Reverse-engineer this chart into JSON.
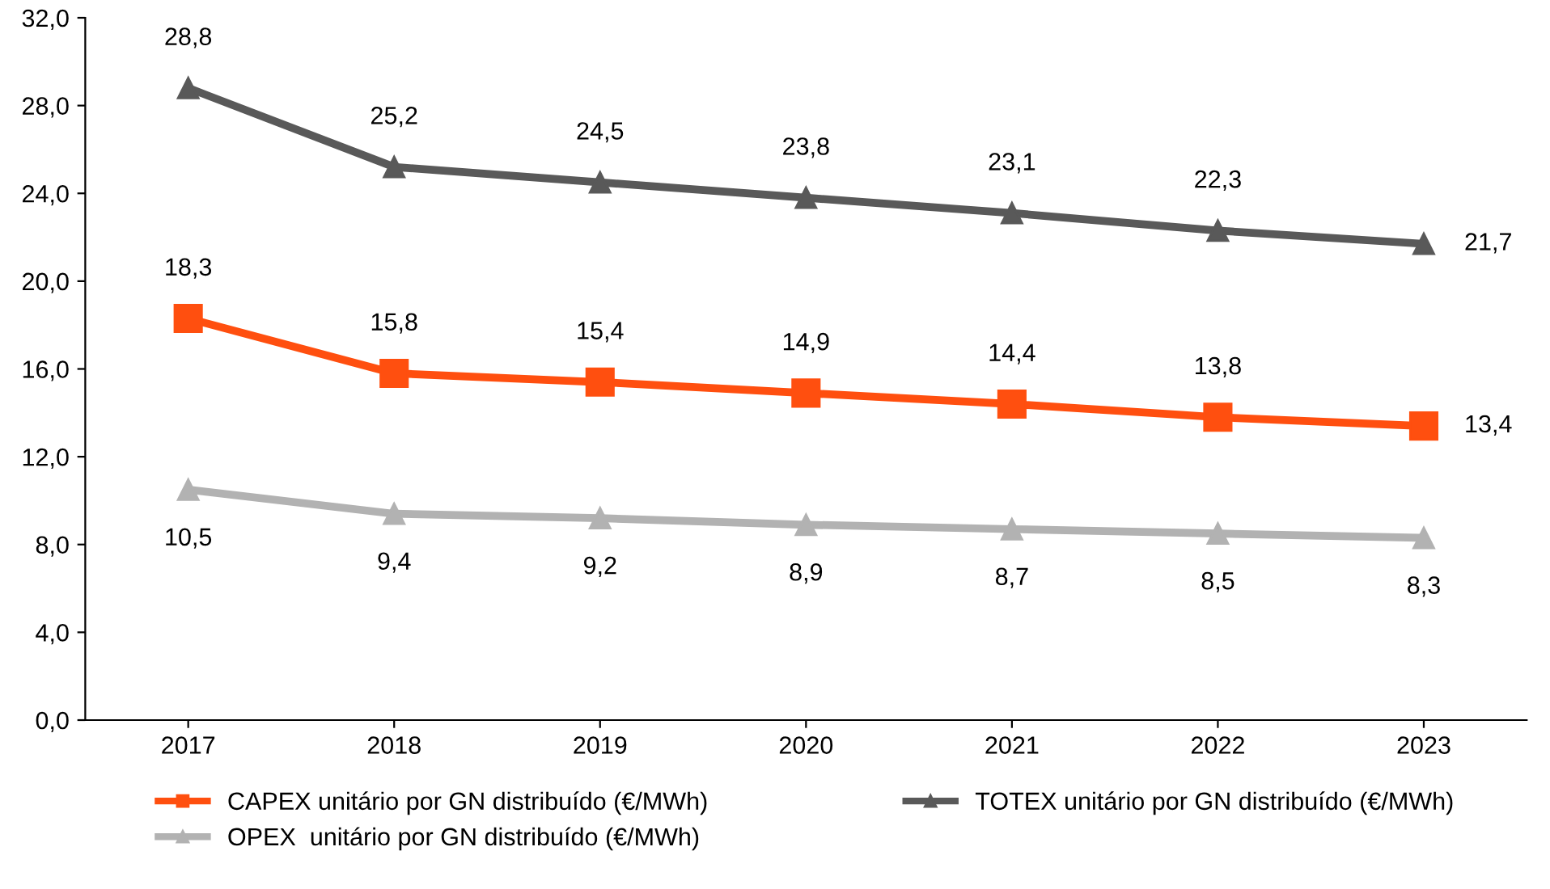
{
  "chart_data": {
    "type": "line",
    "categories": [
      "2017",
      "2018",
      "2019",
      "2020",
      "2021",
      "2022",
      "2023"
    ],
    "series": [
      {
        "name": "CAPEX unitário por GN distribuído (€/MWh)",
        "color": "#ff4f0f",
        "marker": "square",
        "values": [
          18.3,
          15.8,
          15.4,
          14.9,
          14.4,
          13.8,
          13.4
        ],
        "value_labels": [
          "18,3",
          "15,8",
          "15,4",
          "14,9",
          "14,4",
          "13,8",
          "13,4"
        ]
      },
      {
        "name": "OPEX  unitário por GN distribuído (€/MWh)",
        "color": "#b2b2b2",
        "marker": "triangle",
        "values": [
          10.5,
          9.4,
          9.2,
          8.9,
          8.7,
          8.5,
          8.3
        ],
        "value_labels": [
          "10,5",
          "9,4",
          "9,2",
          "8,9",
          "8,7",
          "8,5",
          "8,3"
        ]
      },
      {
        "name": "TOTEX unitário por GN distribuído (€/MWh)",
        "color": "#595959",
        "marker": "triangle",
        "values": [
          28.8,
          25.2,
          24.5,
          23.8,
          23.1,
          22.3,
          21.7
        ],
        "value_labels": [
          "28,8",
          "25,2",
          "24,5",
          "23,8",
          "23,1",
          "22,3",
          "21,7"
        ]
      }
    ],
    "ylim": [
      0,
      32
    ],
    "yticks": [
      {
        "value": 0,
        "label": "0,0"
      },
      {
        "value": 4,
        "label": "4,0"
      },
      {
        "value": 8,
        "label": "8,0"
      },
      {
        "value": 12,
        "label": "12,0"
      },
      {
        "value": 16,
        "label": "16,0"
      },
      {
        "value": 20,
        "label": "20,0"
      },
      {
        "value": 24,
        "label": "24,0"
      },
      {
        "value": 28,
        "label": "28,0"
      },
      {
        "value": 32,
        "label": "32,0"
      }
    ],
    "grid": false,
    "legend": "bottom",
    "line_style": "solid"
  }
}
